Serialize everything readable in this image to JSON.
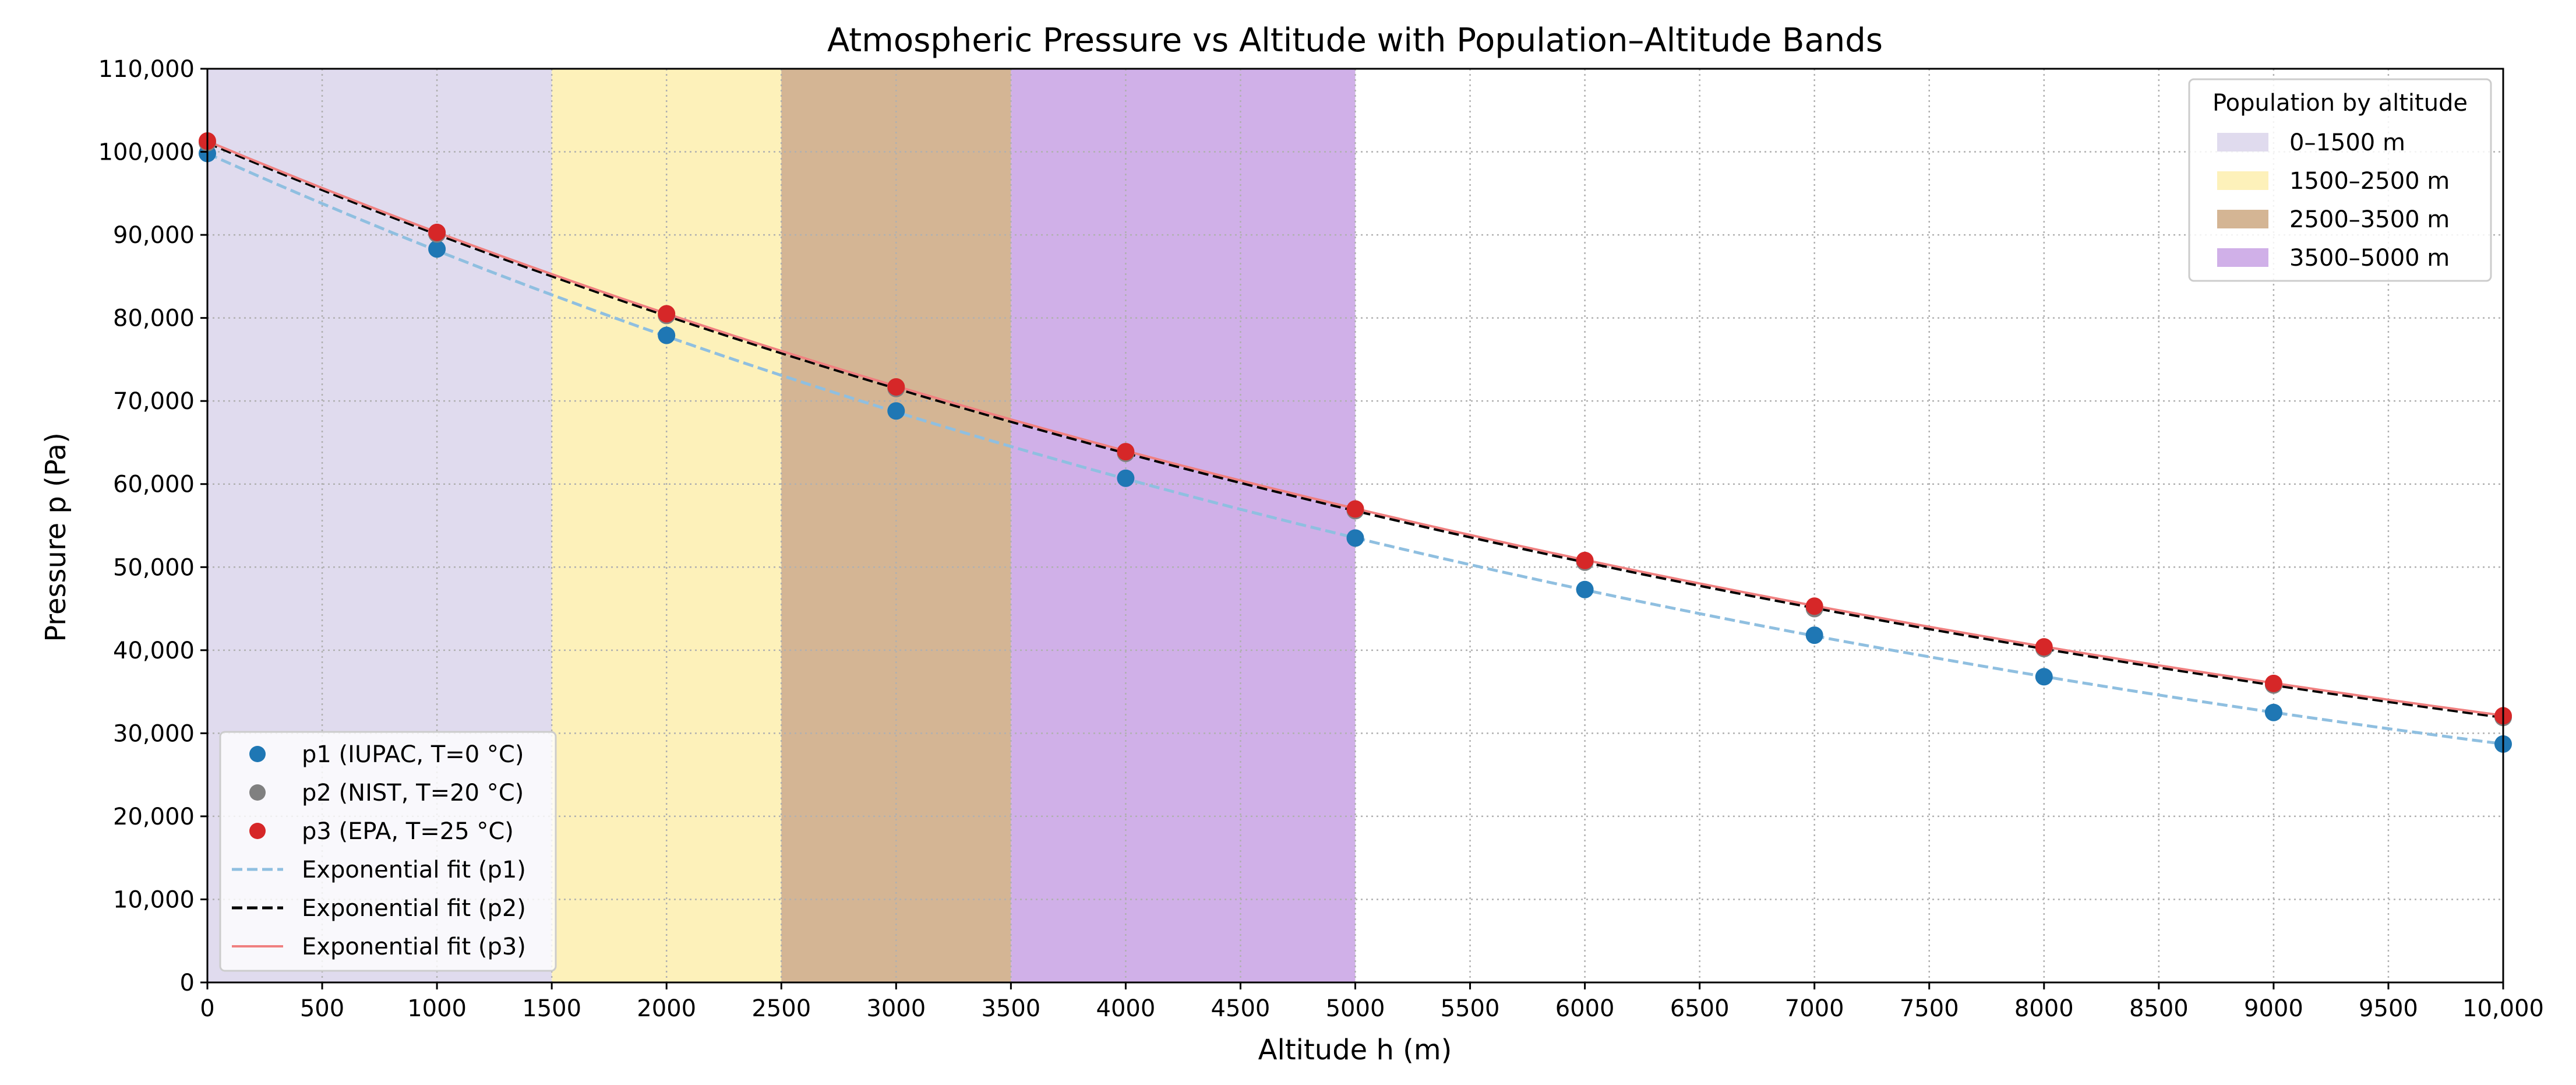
{
  "chart_data": {
    "type": "scatter",
    "title": "Atmospheric Pressure vs Altitude with Population–Altitude Bands",
    "xlabel": "Altitude h (m)",
    "ylabel": "Pressure p (Pa)",
    "xlim": [
      0,
      10000
    ],
    "ylim": [
      0,
      110000
    ],
    "grid": true,
    "x_ticks": [
      0,
      500,
      1000,
      1500,
      2000,
      2500,
      3000,
      3500,
      4000,
      4500,
      5000,
      5500,
      6000,
      6500,
      7000,
      7500,
      8000,
      8500,
      9000,
      9500,
      10000
    ],
    "x_tick_labels": [
      "0",
      "500",
      "1000",
      "1500",
      "2000",
      "2500",
      "3000",
      "3500",
      "4000",
      "4500",
      "5000",
      "5500",
      "6000",
      "6500",
      "7000",
      "7500",
      "8000",
      "8500",
      "9000",
      "9500",
      "10,000"
    ],
    "y_ticks": [
      0,
      10000,
      20000,
      30000,
      40000,
      50000,
      60000,
      70000,
      80000,
      90000,
      100000,
      110000
    ],
    "y_tick_labels": [
      "0",
      "10,000",
      "20,000",
      "30,000",
      "40,000",
      "50,000",
      "60,000",
      "70,000",
      "80,000",
      "90,000",
      "100,000",
      "110,000"
    ],
    "bands": [
      {
        "label": "0–1500 m",
        "from": 0,
        "to": 1500,
        "color": "#e0dbee"
      },
      {
        "label": "1500–2500 m",
        "from": 1500,
        "to": 2500,
        "color": "#fdf1ba"
      },
      {
        "label": "2500–3500 m",
        "from": 2500,
        "to": 3500,
        "color": "#d4b594"
      },
      {
        "label": "3500–5000 m",
        "from": 3500,
        "to": 5000,
        "color": "#d0b0e8"
      }
    ],
    "band_legend_title": "Population by altitude",
    "band_legend_position": "top-right",
    "series": [
      {
        "name": "p1 (IUPAC, T=0 °C)",
        "kind": "points",
        "color": "#1f77b4",
        "x": [
          0,
          1000,
          2000,
          3000,
          4000,
          5000,
          6000,
          7000,
          8000,
          9000,
          10000
        ],
        "y": [
          99800,
          88300,
          77900,
          68800,
          60700,
          53500,
          47300,
          41800,
          36800,
          32500,
          28700
        ]
      },
      {
        "name": "p2 (NIST, T=20 °C)",
        "kind": "points",
        "color": "#808080",
        "x": [
          0,
          1000,
          2000,
          3000,
          4000,
          5000,
          6000,
          7000,
          8000,
          9000,
          10000
        ],
        "y": [
          101100,
          90100,
          80300,
          71500,
          63700,
          56800,
          50600,
          45000,
          40200,
          35800,
          31900
        ]
      },
      {
        "name": "p3 (EPA, T=25 °C)",
        "kind": "points",
        "color": "#d62728",
        "x": [
          0,
          1000,
          2000,
          3000,
          4000,
          5000,
          6000,
          7000,
          8000,
          9000,
          10000
        ],
        "y": [
          101300,
          90300,
          80500,
          71700,
          63900,
          57000,
          50800,
          45300,
          40400,
          36000,
          32100
        ]
      },
      {
        "name": "Exponential fit (p1)",
        "kind": "fit",
        "color": "#8fbfe0",
        "dash": "dashed",
        "a": 99800,
        "b": 0.0001246
      },
      {
        "name": "Exponential fit (p2)",
        "kind": "fit",
        "color": "#000000",
        "dash": "dashed",
        "a": 101100,
        "b": 0.0001153
      },
      {
        "name": "Exponential fit (p3)",
        "kind": "fit",
        "color": "#f08080",
        "dash": "solid",
        "a": 101300,
        "b": 0.0001148
      }
    ],
    "series_legend_position": "bottom-left"
  }
}
